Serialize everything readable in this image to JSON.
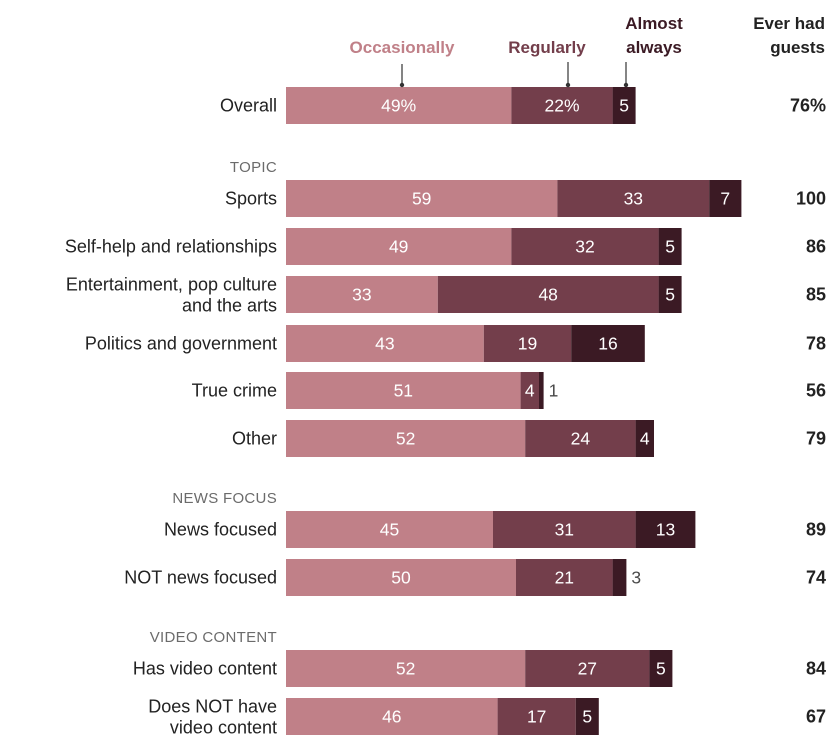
{
  "chart_data": {
    "type": "bar",
    "orientation": "horizontal",
    "stacked": true,
    "series": [
      {
        "name": "Occasionally",
        "color": "#c08088"
      },
      {
        "name": "Regularly",
        "color": "#733e4b"
      },
      {
        "name": "Almost always",
        "color": "#3b1a24"
      }
    ],
    "total_header": "Ever had guests",
    "xlim": [
      0,
      100
    ],
    "rows": [
      {
        "kind": "data",
        "label": [
          "Overall"
        ],
        "values": [
          49,
          22,
          5
        ],
        "value_labels": [
          "49%",
          "22%",
          "5"
        ],
        "total": "76%"
      },
      {
        "kind": "section",
        "label": "TOPIC"
      },
      {
        "kind": "data",
        "label": [
          "Sports"
        ],
        "values": [
          59,
          33,
          7
        ],
        "value_labels": [
          "59",
          "33",
          "7"
        ],
        "total": "100"
      },
      {
        "kind": "data",
        "label": [
          "Self-help and relationships"
        ],
        "values": [
          49,
          32,
          5
        ],
        "value_labels": [
          "49",
          "32",
          "5"
        ],
        "total": "86"
      },
      {
        "kind": "data",
        "label": [
          "Entertainment, pop culture",
          "and the arts"
        ],
        "values": [
          33,
          48,
          5
        ],
        "value_labels": [
          "33",
          "48",
          "5"
        ],
        "total": "85"
      },
      {
        "kind": "data",
        "label": [
          "Politics and government"
        ],
        "values": [
          43,
          19,
          16
        ],
        "value_labels": [
          "43",
          "19",
          "16"
        ],
        "total": "78"
      },
      {
        "kind": "data",
        "label": [
          "True crime"
        ],
        "values": [
          51,
          4,
          1
        ],
        "value_labels": [
          "51",
          "4",
          "1"
        ],
        "total": "56"
      },
      {
        "kind": "data",
        "label": [
          "Other"
        ],
        "values": [
          52,
          24,
          4
        ],
        "value_labels": [
          "52",
          "24",
          "4"
        ],
        "total": "79"
      },
      {
        "kind": "section",
        "label": "NEWS FOCUS"
      },
      {
        "kind": "data",
        "label": [
          "News focused"
        ],
        "values": [
          45,
          31,
          13
        ],
        "value_labels": [
          "45",
          "31",
          "13"
        ],
        "total": "89"
      },
      {
        "kind": "data",
        "label": [
          "NOT news focused"
        ],
        "values": [
          50,
          21,
          3
        ],
        "value_labels": [
          "50",
          "21",
          "3"
        ],
        "total": "74"
      },
      {
        "kind": "section",
        "label": "VIDEO CONTENT"
      },
      {
        "kind": "data",
        "label": [
          "Has video content"
        ],
        "values": [
          52,
          27,
          5
        ],
        "value_labels": [
          "52",
          "27",
          "5"
        ],
        "total": "84"
      },
      {
        "kind": "data",
        "label": [
          "Does NOT have",
          "video content"
        ],
        "values": [
          46,
          17,
          5
        ],
        "value_labels": [
          "46",
          "17",
          "5"
        ],
        "total": "67"
      }
    ]
  }
}
